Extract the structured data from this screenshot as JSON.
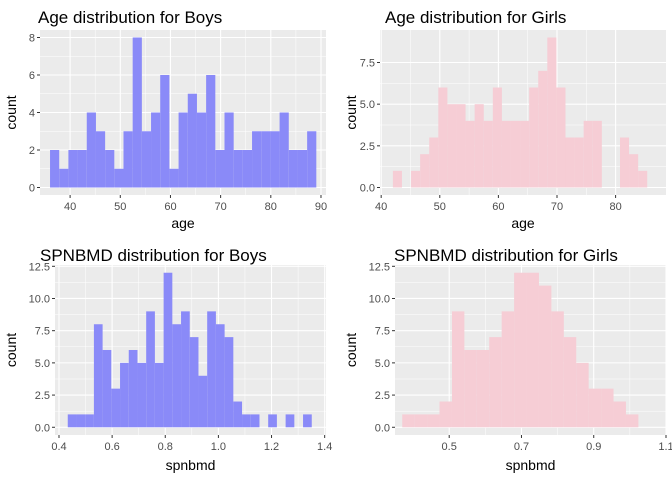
{
  "chart_data": [
    {
      "type": "bar",
      "title": "Age distribution for Boys",
      "xlabel": "age",
      "ylabel": "count",
      "xlim": [
        34,
        91
      ],
      "ylim": [
        -0.4,
        8.4
      ],
      "xticks": [
        40,
        50,
        60,
        70,
        80,
        90
      ],
      "yticks": [
        0,
        2,
        4,
        6,
        8
      ],
      "bin_width": 1.83,
      "bins_x": [
        36.0,
        37.83,
        39.66,
        41.49,
        43.32,
        45.15,
        46.98,
        48.81,
        50.64,
        52.47,
        54.3,
        56.13,
        57.96,
        59.79,
        61.62,
        63.45,
        65.28,
        67.11,
        68.94,
        70.77,
        72.6,
        74.43,
        76.26,
        78.09,
        79.92,
        81.75,
        83.58,
        85.41,
        87.24,
        89.07
      ],
      "values": [
        2,
        1,
        2,
        2,
        4,
        3,
        2,
        1,
        3,
        8,
        3,
        4,
        6,
        1,
        4,
        5,
        4,
        6,
        2,
        4,
        2,
        2,
        3,
        3,
        3,
        4,
        2,
        2,
        3,
        0
      ],
      "grid": true,
      "color": "#8a8af8"
    },
    {
      "type": "bar",
      "title": "Age distribution for Girls",
      "xlabel": "age",
      "ylabel": "count",
      "xlim": [
        39.8,
        88.6
      ],
      "ylim": [
        -0.45,
        9.45
      ],
      "xticks": [
        40,
        50,
        60,
        70,
        80
      ],
      "xtick_labels": [
        "40",
        "50",
        "60",
        "70",
        "80"
      ],
      "yticks": [
        0,
        2.5,
        5,
        7.5
      ],
      "ytick_labels": [
        "0.0",
        "2.5",
        "5.0",
        "7.5"
      ],
      "bin_width": 1.55,
      "bins_x": [
        42.0,
        43.55,
        45.1,
        46.65,
        48.2,
        49.75,
        51.3,
        52.85,
        54.4,
        55.95,
        57.5,
        59.05,
        60.6,
        62.15,
        63.7,
        65.25,
        66.8,
        68.35,
        69.9,
        71.45,
        73.0,
        74.55,
        76.1,
        77.65,
        79.2,
        80.75,
        82.3,
        83.85,
        85.4
      ],
      "values": [
        1,
        0,
        1,
        2,
        3,
        6,
        5,
        5,
        4,
        5,
        4,
        6,
        4,
        4,
        4,
        6,
        7,
        9,
        6,
        3,
        3,
        4,
        4,
        0,
        0,
        3,
        2,
        1,
        0
      ],
      "grid": true,
      "color": "#f6cdd5"
    },
    {
      "type": "bar",
      "title": "SPNBMD distribution for Boys",
      "xlabel": "spnbmd",
      "ylabel": "count",
      "xlim": [
        0.385,
        1.405
      ],
      "ylim": [
        -0.6,
        12.6
      ],
      "xticks": [
        0.4,
        0.6,
        0.8,
        1.0,
        1.2,
        1.4
      ],
      "xtick_labels": [
        "0.4",
        "0.6",
        "0.8",
        "1.0",
        "1.2",
        "1.4"
      ],
      "yticks": [
        0,
        2.5,
        5,
        7.5,
        10,
        12.5
      ],
      "ytick_labels": [
        "0.0",
        "2.5",
        "5.0",
        "7.5",
        "10.0",
        "12.5"
      ],
      "bin_width": 0.0328,
      "bins_x": [
        0.433,
        0.4658,
        0.4986,
        0.5314,
        0.5642,
        0.597,
        0.6298,
        0.6626,
        0.6954,
        0.7282,
        0.761,
        0.7938,
        0.8266,
        0.8594,
        0.8922,
        0.925,
        0.9578,
        0.9906,
        1.0234,
        1.0562,
        1.089,
        1.1218,
        1.1546,
        1.1874,
        1.2202,
        1.253,
        1.2858,
        1.3186,
        1.3514
      ],
      "values": [
        1,
        1,
        1,
        8,
        6,
        3,
        5,
        6,
        5,
        9,
        5,
        12,
        8,
        9,
        7,
        4,
        9,
        8,
        7,
        2,
        1,
        1,
        0,
        1,
        0,
        1,
        0,
        1,
        0
      ],
      "grid": true,
      "color": "#8a8af8"
    },
    {
      "type": "bar",
      "title": "SPNBMD distribution for Girls",
      "xlabel": "spnbmd",
      "ylabel": "count",
      "xlim": [
        0.35,
        1.1
      ],
      "ylim": [
        -0.6,
        12.6
      ],
      "xticks": [
        0.5,
        0.7,
        0.9,
        1.1
      ],
      "xtick_labels": [
        "0.5",
        "0.7",
        "0.9",
        "1.1"
      ],
      "yticks": [
        0,
        2.5,
        5,
        7.5,
        10,
        12.5
      ],
      "ytick_labels": [
        "0.0",
        "2.5",
        "5.0",
        "7.5",
        "10.0",
        "12.5"
      ],
      "bin_width": 0.0344,
      "bins_x": [
        0.37,
        0.4044,
        0.4388,
        0.4732,
        0.5076,
        0.542,
        0.5764,
        0.6108,
        0.6452,
        0.6796,
        0.714,
        0.7484,
        0.7828,
        0.8172,
        0.8516,
        0.886,
        0.9204,
        0.9548,
        0.9892,
        1.0236
      ],
      "values": [
        1,
        1,
        1,
        2,
        9,
        6,
        6,
        7,
        9,
        12,
        12,
        11,
        9,
        7,
        5,
        3,
        3,
        2,
        1,
        0
      ],
      "grid": true,
      "color": "#f6cdd5"
    }
  ]
}
